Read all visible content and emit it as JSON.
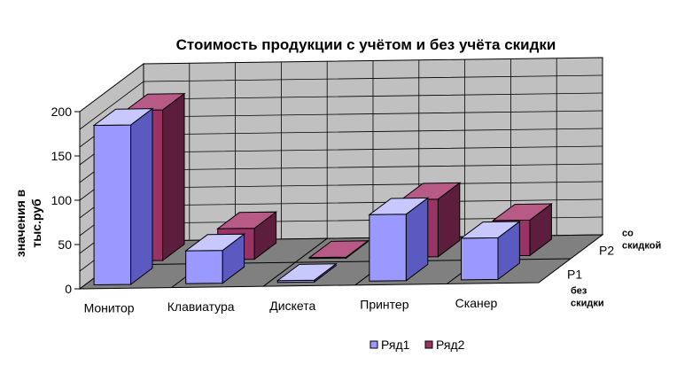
{
  "chart_data": {
    "type": "bar3d",
    "title": "Стоимость продукции с учётом и без учёта скидки",
    "ylabel_lines": [
      "значения в",
      "тыс.руб"
    ],
    "ylim": [
      0,
      200
    ],
    "yticks": [
      "0",
      "50",
      "100",
      "150",
      "200"
    ],
    "categories": [
      "Монитор",
      "Клавиатура",
      "Дискета",
      "Принтер",
      "Сканер"
    ],
    "series": [
      {
        "name": "Ряд1",
        "row_label": "Р1",
        "row_note": [
          "без",
          "скидки"
        ],
        "values": [
          180,
          37,
          2,
          75,
          47
        ],
        "color": "#9999ff",
        "side": "#5a5ac0",
        "top": "#c8c8ff"
      },
      {
        "name": "Ряд2",
        "row_label": "Р2",
        "row_note": [
          "со",
          "скидкой"
        ],
        "values": [
          170,
          35,
          1,
          65,
          40
        ],
        "color": "#993366",
        "side": "#5c1e3c",
        "top": "#b85a86"
      }
    ],
    "legend_position": "bottom",
    "grid": true,
    "colors": {
      "wall": "#c0c0c0",
      "floor": "#808080"
    }
  }
}
